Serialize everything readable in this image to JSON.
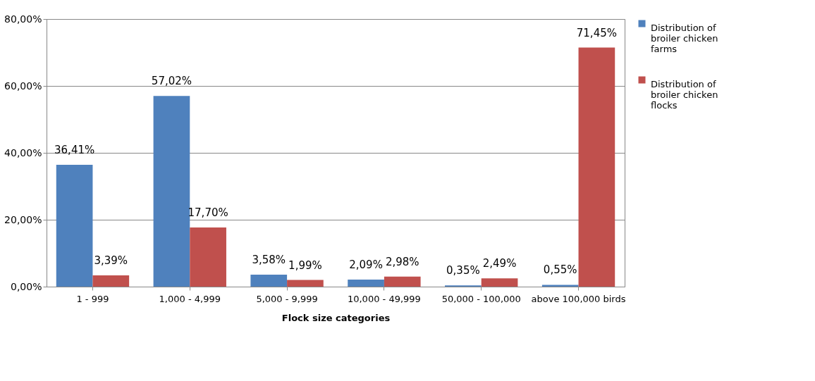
{
  "chart_data": {
    "type": "bar",
    "xlabel": "Flock size categories",
    "categories": [
      "1 - 999",
      "1,000 - 4,999",
      "5,000 - 9,999",
      "10,000 - 49,999",
      "50,000 - 100,000",
      "above 100,000 birds"
    ],
    "series": [
      {
        "name": "Distribution of broiler chicken farms",
        "color": "#4f81bd",
        "values": [
          36.41,
          57.02,
          3.58,
          2.09,
          0.35,
          0.55
        ],
        "value_labels": [
          "36,41%",
          "57,02%",
          "3,58%",
          "2,09%",
          "0,35%",
          "0,55%"
        ]
      },
      {
        "name": "Distribution of broiler chicken flocks",
        "color": "#c0504d",
        "values": [
          3.39,
          17.7,
          1.99,
          2.98,
          2.49,
          71.45
        ],
        "value_labels": [
          "3,39%",
          "17,70%",
          "1,99%",
          "2,98%",
          "2,49%",
          "71,45%"
        ]
      }
    ],
    "ylim": [
      0,
      80
    ],
    "yticks": [
      {
        "value": 0,
        "label": "0,00%"
      },
      {
        "value": 20,
        "label": "20,00%"
      },
      {
        "value": 40,
        "label": "40,00%"
      },
      {
        "value": 60,
        "label": "60,00%"
      },
      {
        "value": 80,
        "label": "80,00%"
      }
    ],
    "grid": "y",
    "legend": "right"
  }
}
